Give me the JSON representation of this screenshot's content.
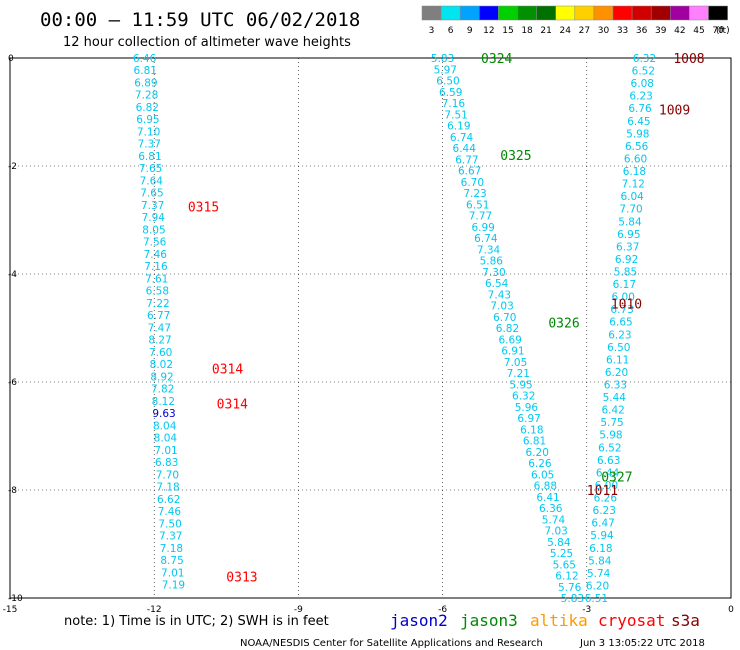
{
  "header": {
    "title": "00:00 – 11:59 UTC 06/02/2018",
    "subtitle": "12 hour collection of altimeter wave heights"
  },
  "scale": {
    "ticks": [
      "3",
      "6",
      "9",
      "12",
      "15",
      "18",
      "21",
      "24",
      "27",
      "30",
      "33",
      "36",
      "39",
      "42",
      "45",
      "70"
    ],
    "unit": "(ft)",
    "colors": [
      "#7f7f7f",
      "#00e5ee",
      "#00a4ff",
      "#0000ff",
      "#00d000",
      "#009000",
      "#007000",
      "#ffff00",
      "#ffd000",
      "#ff9000",
      "#ff0000",
      "#d00000",
      "#a00000",
      "#a000a0",
      "#ff80ff",
      "#000000"
    ]
  },
  "footer": {
    "note": "note: 1) Time is in UTC; 2) SWH is in feet",
    "credit": "NOAA/NESDIS Center for Satellite Applications and Research",
    "timestamp": "Jun  3 13:05:22 UTC 2018",
    "legend": [
      {
        "name": "jason2",
        "color": "#0000cc"
      },
      {
        "name": "jason3",
        "color": "#008800"
      },
      {
        "name": "altika",
        "color": "#ff9900"
      },
      {
        "name": "cryosat",
        "color": "#ff0000"
      },
      {
        "name": "s3a",
        "color": "#880000"
      }
    ]
  },
  "chart_data": {
    "type": "scatter",
    "xlim": [
      -15,
      0
    ],
    "ylim": [
      -10,
      0
    ],
    "x_ticks": [
      "-15",
      "-12",
      "-9",
      "-6",
      "-3",
      "0"
    ],
    "y_ticks": [
      "0",
      "-2",
      "-4",
      "-6",
      "-8",
      "-10"
    ],
    "grid": true,
    "point_color": "#00c8f0",
    "special_colors": {
      "highlight": "#0000cc"
    },
    "tracks": [
      {
        "name": "track-left",
        "x_start": -12.2,
        "x_end": -11.6,
        "y_start": 0,
        "y_end": -9.75,
        "values": [
          "6.46",
          "6.81",
          "6.89",
          "7.28",
          "6.82",
          "6.95",
          "7.10",
          "7.37",
          "6.81",
          "7.65",
          "7.64",
          "7.65",
          "7.37",
          "7.94",
          "8.05",
          "7.56",
          "7.46",
          "7.16",
          "7.61",
          "6.58",
          "7.22",
          "6.77",
          "7.47",
          "8.27",
          "7.60",
          "8.02",
          "8.92",
          "7.82",
          "8.12",
          "9.63",
          "8.04",
          "8.04",
          "7.01",
          "6.83",
          "7.70",
          "7.18",
          "6.62",
          "7.46",
          "7.50",
          "7.37",
          "7.18",
          "8.75",
          "7.01",
          "7.19"
        ],
        "highlight": [
          29
        ]
      },
      {
        "name": "track-middle",
        "x_start": -6.0,
        "x_end": -3.3,
        "y_start": 0,
        "y_end": -10,
        "values": [
          "5.83",
          "5.97",
          "6.50",
          "6.59",
          "7.16",
          "7.51",
          "6.19",
          "6.74",
          "6.44",
          "6.77",
          "6.67",
          "6.70",
          "7.23",
          "6.51",
          "7.77",
          "6.99",
          "6.74",
          "7.34",
          "5.86",
          "7.30",
          "6.54",
          "7.43",
          "7.03",
          "6.70",
          "6.82",
          "6.69",
          "6.91",
          "7.05",
          "7.21",
          "5.95",
          "6.32",
          "5.96",
          "6.97",
          "6.18",
          "6.81",
          "6.20",
          "6.26",
          "6.05",
          "6.88",
          "6.41",
          "6.36",
          "5.74",
          "7.03",
          "5.84",
          "5.25",
          "5.65",
          "6.12",
          "5.76",
          "5.83"
        ]
      },
      {
        "name": "track-right",
        "x_start": -1.8,
        "x_end": -2.8,
        "y_start": 0,
        "y_end": -10,
        "values": [
          "6.32",
          "6.52",
          "6.08",
          "6.23",
          "6.76",
          "6.45",
          "5.98",
          "6.56",
          "6.60",
          "6.18",
          "7.12",
          "6.04",
          "7.70",
          "5.84",
          "6.95",
          "6.37",
          "6.92",
          "5.85",
          "6.17",
          "6.00",
          "6.73",
          "6.65",
          "6.23",
          "6.50",
          "6.11",
          "6.20",
          "6.33",
          "5.44",
          "6.42",
          "5.75",
          "5.98",
          "6.52",
          "6.63",
          "6.44",
          "6.00",
          "6.26",
          "6.23",
          "6.47",
          "5.94",
          "6.18",
          "5.84",
          "5.74",
          "6.20",
          "6.51"
        ]
      }
    ],
    "annotations": [
      {
        "text": "1008",
        "x": -1.2,
        "y": 0,
        "color": "#880000"
      },
      {
        "text": "1009",
        "x": -1.5,
        "y": -0.95,
        "color": "#880000"
      },
      {
        "text": "0324",
        "x": -5.2,
        "y": 0,
        "color": "#008800"
      },
      {
        "text": "0325",
        "x": -4.8,
        "y": -1.8,
        "color": "#008800"
      },
      {
        "text": "0315",
        "x": -11.3,
        "y": -2.75,
        "color": "#ff0000"
      },
      {
        "text": "1010",
        "x": -2.5,
        "y": -4.55,
        "color": "#880000"
      },
      {
        "text": "0326",
        "x": -3.8,
        "y": -4.9,
        "color": "#008800"
      },
      {
        "text": "0314",
        "x": -10.8,
        "y": -5.75,
        "color": "#ff0000"
      },
      {
        "text": "0314",
        "x": -10.7,
        "y": -6.4,
        "color": "#ff0000"
      },
      {
        "text": "0327",
        "x": -2.7,
        "y": -7.75,
        "color": "#008800"
      },
      {
        "text": "1011",
        "x": -3.0,
        "y": -8.0,
        "color": "#880000"
      },
      {
        "text": "0313",
        "x": -10.5,
        "y": -9.6,
        "color": "#ff0000"
      }
    ]
  }
}
